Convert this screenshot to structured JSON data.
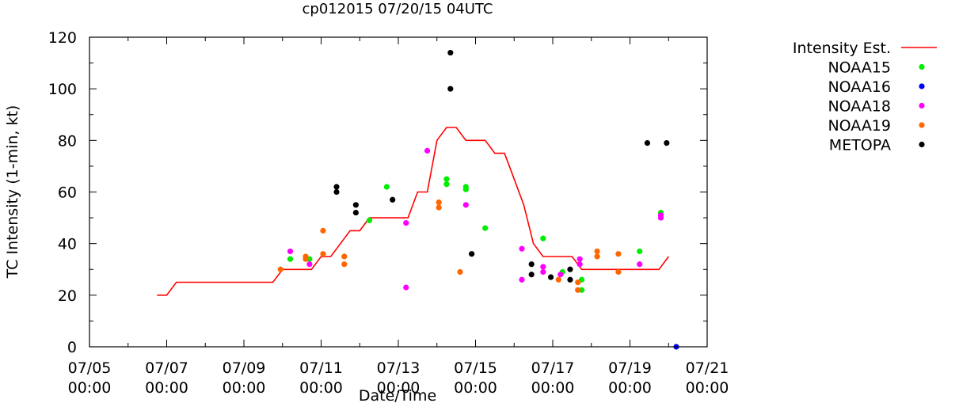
{
  "chart_data": {
    "type": "scatter",
    "title": "cp012015 07/20/15 04UTC",
    "xlabel": "Date/Time",
    "ylabel": "TC Intensity (1-min, kt)",
    "xlim": [
      0,
      16
    ],
    "ylim": [
      0,
      120
    ],
    "x_unit": "days since 07/05 00:00",
    "y_ticks": [
      0,
      20,
      40,
      60,
      80,
      100,
      120
    ],
    "x_ticks": [
      {
        "value": 0,
        "line1": "07/05",
        "line2": "00:00"
      },
      {
        "value": 2,
        "line1": "07/07",
        "line2": "00:00"
      },
      {
        "value": 4,
        "line1": "07/09",
        "line2": "00:00"
      },
      {
        "value": 6,
        "line1": "07/11",
        "line2": "00:00"
      },
      {
        "value": 8,
        "line1": "07/13",
        "line2": "00:00"
      },
      {
        "value": 10,
        "line1": "07/15",
        "line2": "00:00"
      },
      {
        "value": 12,
        "line1": "07/17",
        "line2": "00:00"
      },
      {
        "value": 14,
        "line1": "07/19",
        "line2": "00:00"
      },
      {
        "value": 16,
        "line1": "07/21",
        "line2": "00:00"
      }
    ],
    "line_series": {
      "name": "Intensity Est.",
      "color": "#ff0000",
      "points": [
        [
          1.75,
          20
        ],
        [
          2.0,
          20
        ],
        [
          2.25,
          25
        ],
        [
          4.5,
          25
        ],
        [
          4.75,
          25
        ],
        [
          5.0,
          30
        ],
        [
          5.75,
          30
        ],
        [
          6.0,
          35
        ],
        [
          6.25,
          35
        ],
        [
          6.5,
          40
        ],
        [
          6.75,
          45
        ],
        [
          7.0,
          45
        ],
        [
          7.25,
          50
        ],
        [
          8.0,
          50
        ],
        [
          8.25,
          50
        ],
        [
          8.5,
          60
        ],
        [
          8.75,
          60
        ],
        [
          9.0,
          80
        ],
        [
          9.25,
          85
        ],
        [
          9.5,
          85
        ],
        [
          9.75,
          80
        ],
        [
          10.0,
          80
        ],
        [
          10.25,
          80
        ],
        [
          10.5,
          75
        ],
        [
          10.75,
          75
        ],
        [
          11.0,
          65
        ],
        [
          11.25,
          55
        ],
        [
          11.5,
          40
        ],
        [
          11.75,
          35
        ],
        [
          12.0,
          35
        ],
        [
          12.5,
          35
        ],
        [
          12.75,
          30
        ],
        [
          14.75,
          30
        ],
        [
          15.0,
          35
        ]
      ]
    },
    "scatter_series": [
      {
        "name": "NOAA15",
        "color": "#00ee00",
        "points": [
          [
            5.2,
            34
          ],
          [
            5.7,
            34
          ],
          [
            7.25,
            49
          ],
          [
            7.7,
            62
          ],
          [
            9.25,
            65
          ],
          [
            9.25,
            63
          ],
          [
            9.75,
            62
          ],
          [
            9.75,
            61
          ],
          [
            10.25,
            46
          ],
          [
            11.75,
            42
          ],
          [
            12.25,
            29
          ],
          [
            12.75,
            26
          ],
          [
            12.75,
            22
          ],
          [
            14.25,
            37
          ],
          [
            14.8,
            52
          ]
        ]
      },
      {
        "name": "NOAA16",
        "color": "#0000ff",
        "points": [
          [
            15.2,
            0
          ]
        ]
      },
      {
        "name": "NOAA18",
        "color": "#ff00ff",
        "points": [
          [
            5.2,
            37
          ],
          [
            5.7,
            32
          ],
          [
            8.2,
            48
          ],
          [
            8.2,
            23
          ],
          [
            8.75,
            76
          ],
          [
            9.75,
            55
          ],
          [
            11.2,
            38
          ],
          [
            11.2,
            26
          ],
          [
            11.75,
            31
          ],
          [
            11.75,
            29
          ],
          [
            12.2,
            28
          ],
          [
            12.7,
            34
          ],
          [
            12.7,
            32
          ],
          [
            14.25,
            32
          ],
          [
            14.8,
            51
          ],
          [
            14.8,
            50
          ]
        ]
      },
      {
        "name": "NOAA19",
        "color": "#ff6600",
        "points": [
          [
            4.95,
            30
          ],
          [
            5.6,
            35
          ],
          [
            5.6,
            34
          ],
          [
            6.05,
            45
          ],
          [
            6.05,
            36
          ],
          [
            6.6,
            35
          ],
          [
            6.6,
            32
          ],
          [
            9.05,
            56
          ],
          [
            9.05,
            54
          ],
          [
            9.6,
            29
          ],
          [
            12.15,
            26
          ],
          [
            12.65,
            25
          ],
          [
            12.65,
            22
          ],
          [
            13.15,
            37
          ],
          [
            13.15,
            35
          ],
          [
            13.7,
            36
          ],
          [
            13.7,
            29
          ]
        ]
      },
      {
        "name": "METOPA",
        "color": "#000000",
        "points": [
          [
            6.4,
            62
          ],
          [
            6.4,
            60
          ],
          [
            6.9,
            55
          ],
          [
            6.9,
            52
          ],
          [
            7.85,
            57
          ],
          [
            9.35,
            114
          ],
          [
            9.35,
            100
          ],
          [
            9.9,
            36
          ],
          [
            11.45,
            32
          ],
          [
            11.45,
            28
          ],
          [
            11.95,
            27
          ],
          [
            12.45,
            30
          ],
          [
            12.45,
            26
          ],
          [
            14.45,
            79
          ],
          [
            14.95,
            79
          ]
        ]
      }
    ],
    "grid": false,
    "legend_position": "outside-right"
  }
}
